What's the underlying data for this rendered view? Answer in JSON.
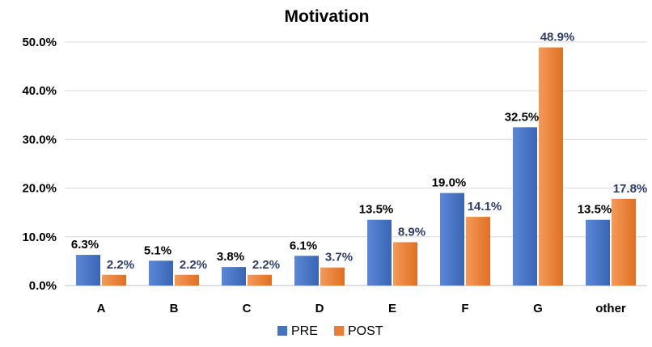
{
  "chart_data": {
    "type": "bar",
    "title": "Motivation",
    "categories": [
      "A",
      "B",
      "C",
      "D",
      "E",
      "F",
      "G",
      "other"
    ],
    "series": [
      {
        "name": "PRE",
        "color": "#4472c4",
        "values": [
          6.3,
          5.1,
          3.8,
          6.1,
          13.5,
          19.0,
          32.5,
          13.5
        ],
        "labels": [
          "6.3%",
          "5.1%",
          "3.8%",
          "6.1%",
          "13.5%",
          "19.0%",
          "32.5%",
          "13.5%"
        ]
      },
      {
        "name": "POST",
        "color": "#ed7d31",
        "values": [
          2.2,
          2.2,
          2.2,
          3.7,
          8.9,
          14.1,
          48.9,
          17.8
        ],
        "labels": [
          "2.2%",
          "2.2%",
          "2.2%",
          "3.7%",
          "8.9%",
          "14.1%",
          "48.9%",
          "17.8%"
        ]
      }
    ],
    "ylim": [
      0,
      50
    ],
    "yticks": [
      0,
      10,
      20,
      30,
      40,
      50
    ],
    "ytick_labels": [
      "0.0%",
      "10.0%",
      "20.0%",
      "30.0%",
      "40.0%",
      "50.0%"
    ],
    "grid": true,
    "legend": "bottom"
  }
}
